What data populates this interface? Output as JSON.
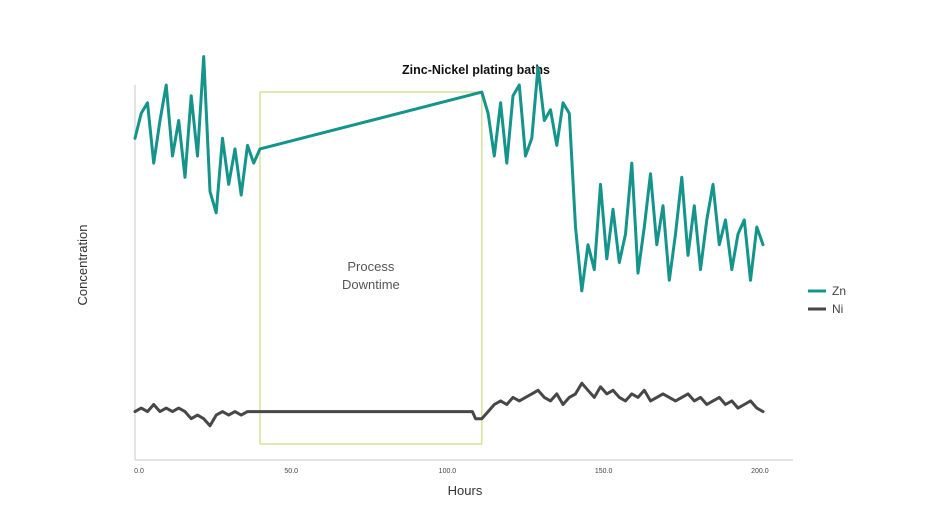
{
  "chart_data": {
    "type": "line",
    "title": "Zinc-Nickel plating baths",
    "xlabel": "Hours",
    "ylabel": "Concentration",
    "xlim": [
      0,
      201
    ],
    "x_ticks": [
      "0.0",
      "50.0",
      "100.0",
      "150.0",
      "200.0"
    ],
    "x_tick_values": [
      0,
      50,
      100,
      150,
      200
    ],
    "grid": false,
    "legend_position": "right",
    "annotation": {
      "lines": [
        "Process",
        "Downtime"
      ],
      "x_range": [
        40,
        111
      ],
      "color": "#d3dd8c"
    },
    "series": [
      {
        "name": "Zn",
        "color": "#14948a",
        "points": [
          [
            0,
            0.85
          ],
          [
            2,
            0.92
          ],
          [
            4,
            0.95
          ],
          [
            6,
            0.78
          ],
          [
            8,
            0.9
          ],
          [
            10,
            1.0
          ],
          [
            12,
            0.8
          ],
          [
            14,
            0.9
          ],
          [
            16,
            0.74
          ],
          [
            18,
            0.97
          ],
          [
            20,
            0.8
          ],
          [
            22,
            1.08
          ],
          [
            24,
            0.7
          ],
          [
            26,
            0.64
          ],
          [
            28,
            0.85
          ],
          [
            30,
            0.72
          ],
          [
            32,
            0.82
          ],
          [
            34,
            0.69
          ],
          [
            36,
            0.83
          ],
          [
            38,
            0.78
          ],
          [
            40,
            0.82
          ],
          [
            111,
            0.98
          ],
          [
            113,
            0.92
          ],
          [
            115,
            0.8
          ],
          [
            117,
            0.95
          ],
          [
            119,
            0.78
          ],
          [
            121,
            0.97
          ],
          [
            123,
            1.0
          ],
          [
            125,
            0.8
          ],
          [
            127,
            0.85
          ],
          [
            129,
            1.05
          ],
          [
            131,
            0.9
          ],
          [
            133,
            0.93
          ],
          [
            135,
            0.83
          ],
          [
            137,
            0.95
          ],
          [
            139,
            0.92
          ],
          [
            141,
            0.6
          ],
          [
            143,
            0.42
          ],
          [
            145,
            0.55
          ],
          [
            147,
            0.48
          ],
          [
            149,
            0.72
          ],
          [
            151,
            0.51
          ],
          [
            153,
            0.65
          ],
          [
            155,
            0.5
          ],
          [
            157,
            0.58
          ],
          [
            159,
            0.78
          ],
          [
            161,
            0.47
          ],
          [
            163,
            0.6
          ],
          [
            165,
            0.75
          ],
          [
            167,
            0.55
          ],
          [
            169,
            0.66
          ],
          [
            171,
            0.45
          ],
          [
            173,
            0.58
          ],
          [
            175,
            0.74
          ],
          [
            177,
            0.52
          ],
          [
            179,
            0.66
          ],
          [
            181,
            0.48
          ],
          [
            183,
            0.62
          ],
          [
            185,
            0.72
          ],
          [
            187,
            0.55
          ],
          [
            189,
            0.62
          ],
          [
            191,
            0.48
          ],
          [
            193,
            0.58
          ],
          [
            195,
            0.62
          ],
          [
            197,
            0.45
          ],
          [
            199,
            0.6
          ],
          [
            201,
            0.55
          ]
        ]
      },
      {
        "name": "Ni",
        "color": "#474747",
        "points": [
          [
            0,
            0.08
          ],
          [
            2,
            0.09
          ],
          [
            4,
            0.08
          ],
          [
            6,
            0.1
          ],
          [
            8,
            0.08
          ],
          [
            10,
            0.09
          ],
          [
            12,
            0.08
          ],
          [
            14,
            0.09
          ],
          [
            16,
            0.08
          ],
          [
            18,
            0.06
          ],
          [
            20,
            0.07
          ],
          [
            22,
            0.06
          ],
          [
            24,
            0.04
          ],
          [
            26,
            0.07
          ],
          [
            28,
            0.08
          ],
          [
            30,
            0.07
          ],
          [
            32,
            0.08
          ],
          [
            34,
            0.07
          ],
          [
            36,
            0.08
          ],
          [
            38,
            0.08
          ],
          [
            40,
            0.08
          ],
          [
            108,
            0.08
          ],
          [
            109,
            0.06
          ],
          [
            111,
            0.06
          ],
          [
            113,
            0.08
          ],
          [
            115,
            0.1
          ],
          [
            117,
            0.11
          ],
          [
            119,
            0.1
          ],
          [
            121,
            0.12
          ],
          [
            123,
            0.11
          ],
          [
            125,
            0.12
          ],
          [
            127,
            0.13
          ],
          [
            129,
            0.14
          ],
          [
            131,
            0.12
          ],
          [
            133,
            0.11
          ],
          [
            135,
            0.13
          ],
          [
            137,
            0.1
          ],
          [
            139,
            0.12
          ],
          [
            141,
            0.13
          ],
          [
            143,
            0.16
          ],
          [
            145,
            0.14
          ],
          [
            147,
            0.12
          ],
          [
            149,
            0.15
          ],
          [
            151,
            0.13
          ],
          [
            153,
            0.14
          ],
          [
            155,
            0.12
          ],
          [
            157,
            0.11
          ],
          [
            159,
            0.13
          ],
          [
            161,
            0.12
          ],
          [
            163,
            0.14
          ],
          [
            165,
            0.11
          ],
          [
            167,
            0.12
          ],
          [
            169,
            0.13
          ],
          [
            171,
            0.12
          ],
          [
            173,
            0.11
          ],
          [
            175,
            0.12
          ],
          [
            177,
            0.13
          ],
          [
            179,
            0.11
          ],
          [
            181,
            0.12
          ],
          [
            183,
            0.1
          ],
          [
            185,
            0.11
          ],
          [
            187,
            0.12
          ],
          [
            189,
            0.1
          ],
          [
            191,
            0.11
          ],
          [
            193,
            0.09
          ],
          [
            195,
            0.1
          ],
          [
            197,
            0.11
          ],
          [
            199,
            0.09
          ],
          [
            201,
            0.08
          ]
        ]
      }
    ]
  }
}
